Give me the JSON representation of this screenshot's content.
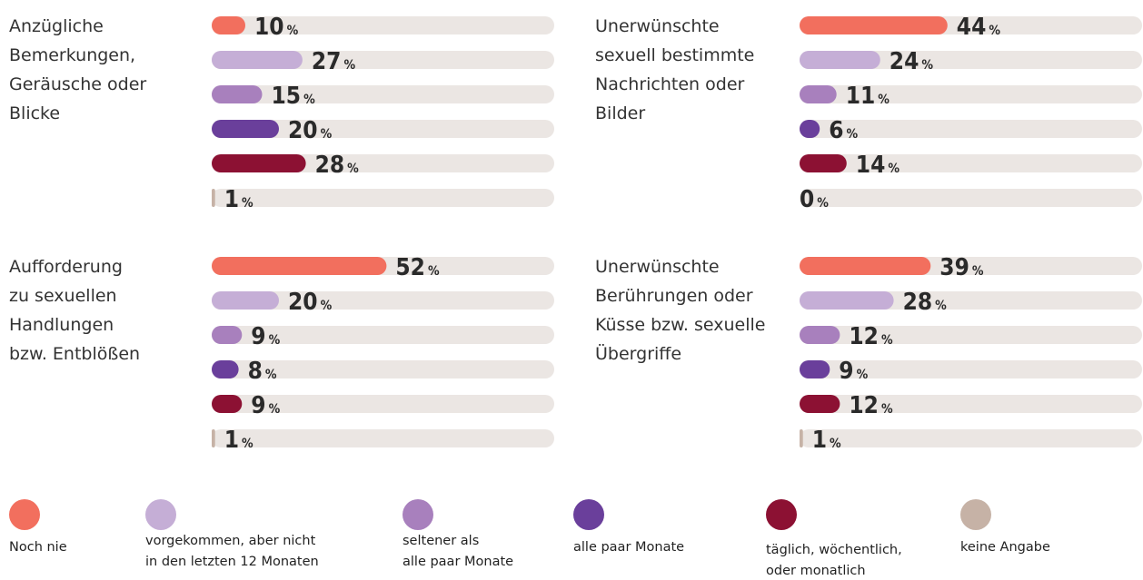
{
  "chart_data": [
    {
      "type": "bar",
      "title": [
        "Anzügliche",
        "Bemerkungen,",
        "Geräusche oder",
        "Blicke"
      ],
      "values": [
        10,
        27,
        15,
        20,
        28,
        1
      ],
      "xlim": [
        0,
        100
      ],
      "unit": "%"
    },
    {
      "type": "bar",
      "title": [
        "Unerwünschte",
        "sexuell bestimmte",
        "Nachrichten oder",
        "Bilder"
      ],
      "values": [
        44,
        24,
        11,
        6,
        14,
        0
      ],
      "xlim": [
        0,
        100
      ],
      "unit": "%"
    },
    {
      "type": "bar",
      "title": [
        "Aufforderung",
        "zu sexuellen",
        "Handlungen",
        "bzw. Entblößen"
      ],
      "values": [
        52,
        20,
        9,
        8,
        9,
        1
      ],
      "xlim": [
        0,
        100
      ],
      "unit": "%"
    },
    {
      "type": "bar",
      "title": [
        "Unerwünschte",
        "Berührungen oder",
        "Küsse bzw. sexuelle",
        "Übergriffe"
      ],
      "values": [
        39,
        28,
        12,
        9,
        12,
        1
      ],
      "xlim": [
        0,
        100
      ],
      "unit": "%"
    }
  ],
  "legend": {
    "labels": [
      [
        "Noch nie"
      ],
      [
        "vorgekommen, aber nicht",
        "in den letzten  12 Monaten"
      ],
      [
        "seltener als",
        "alle paar Monate"
      ],
      [
        "alle paar Monate"
      ],
      [
        "täglich, wöchentlich,",
        "oder monatlich"
      ],
      [
        "keine Angabe"
      ]
    ],
    "colors": [
      "#f26f5e",
      "#c5aed6",
      "#a880bd",
      "#6a3f9b",
      "#8c1133",
      "#c6b2a6"
    ]
  }
}
